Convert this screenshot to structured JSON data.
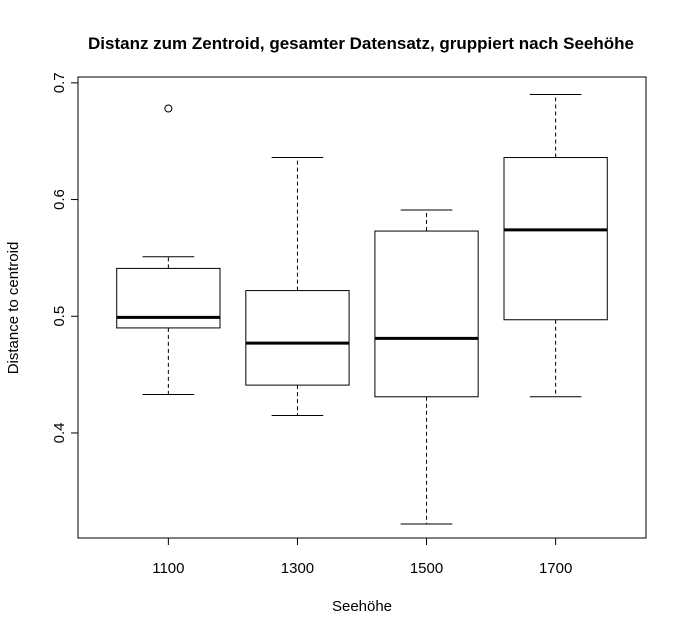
{
  "chart_data": {
    "type": "boxplot",
    "title": "Distanz zum Zentroid, gesamter Datensatz, gruppiert nach Seehöhe",
    "xlabel": "Seehöhe",
    "ylabel": "Distance to centroid",
    "categories": [
      "1100",
      "1300",
      "1500",
      "1700"
    ],
    "y_ticks": [
      "0.4",
      "0.5",
      "0.6",
      "0.7"
    ],
    "ylim": [
      0.31,
      0.705
    ],
    "boxes": [
      {
        "category": "1100",
        "whisker_low": 0.433,
        "q1": 0.49,
        "median": 0.499,
        "q3": 0.541,
        "whisker_high": 0.551,
        "outliers": [
          0.678
        ]
      },
      {
        "category": "1300",
        "whisker_low": 0.415,
        "q1": 0.441,
        "median": 0.477,
        "q3": 0.522,
        "whisker_high": 0.636,
        "outliers": []
      },
      {
        "category": "1500",
        "whisker_low": 0.322,
        "q1": 0.431,
        "median": 0.481,
        "q3": 0.573,
        "whisker_high": 0.591,
        "outliers": []
      },
      {
        "category": "1700",
        "whisker_low": 0.431,
        "q1": 0.497,
        "median": 0.574,
        "q3": 0.636,
        "whisker_high": 0.69,
        "outliers": []
      }
    ],
    "grid": false,
    "legend": "none"
  }
}
